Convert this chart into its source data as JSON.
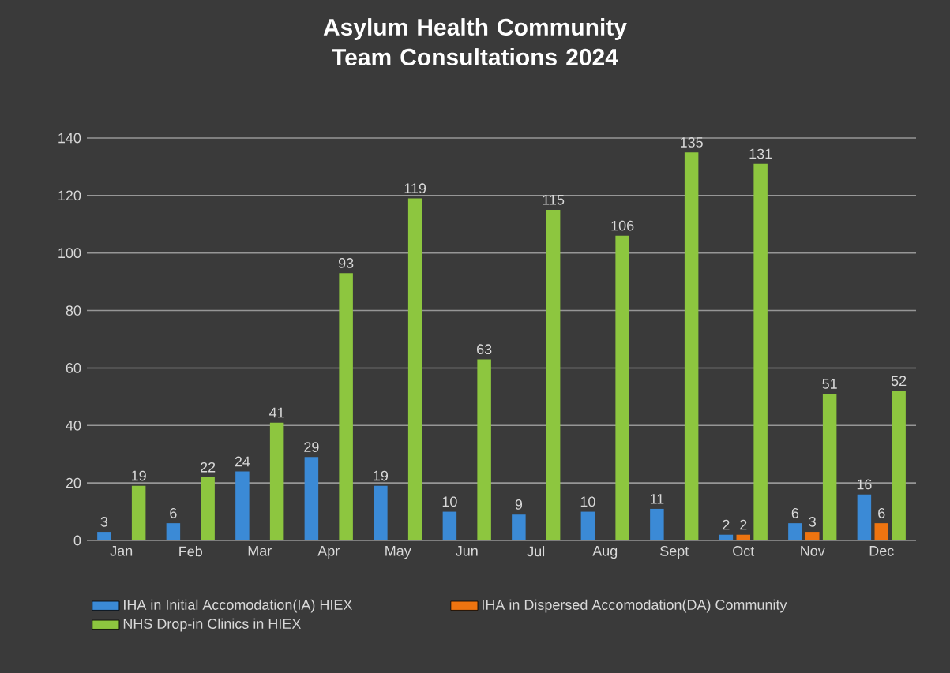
{
  "chart_data": {
    "type": "bar",
    "title": "Asylum Health Community Team Consultations 2024",
    "categories": [
      "Jan",
      "Feb",
      "Mar",
      "Apr",
      "May",
      "Jun",
      "Jul",
      "Aug",
      "Sept",
      "Oct",
      "Nov",
      "Dec"
    ],
    "series": [
      {
        "name": "IHA in Initial Accomodation(IA) HIEX",
        "color": "#3b8ad6",
        "values": [
          3,
          6,
          24,
          29,
          19,
          10,
          9,
          10,
          11,
          2,
          6,
          16
        ]
      },
      {
        "name": "IHA in Dispersed Accomodation(DA) Community",
        "color": "#ee7410",
        "values": [
          null,
          null,
          null,
          null,
          null,
          null,
          null,
          null,
          null,
          2,
          3,
          6
        ]
      },
      {
        "name": "NHS Drop-in Clinics in HIEX",
        "color": "#8dc63f",
        "values": [
          19,
          22,
          41,
          93,
          119,
          63,
          115,
          106,
          135,
          131,
          51,
          52
        ]
      }
    ],
    "ylim": [
      0,
      140
    ],
    "yticks": [
      0,
      20,
      40,
      60,
      80,
      100,
      120,
      140
    ],
    "grid": "y",
    "legend": "bottom",
    "data_labels": true
  }
}
